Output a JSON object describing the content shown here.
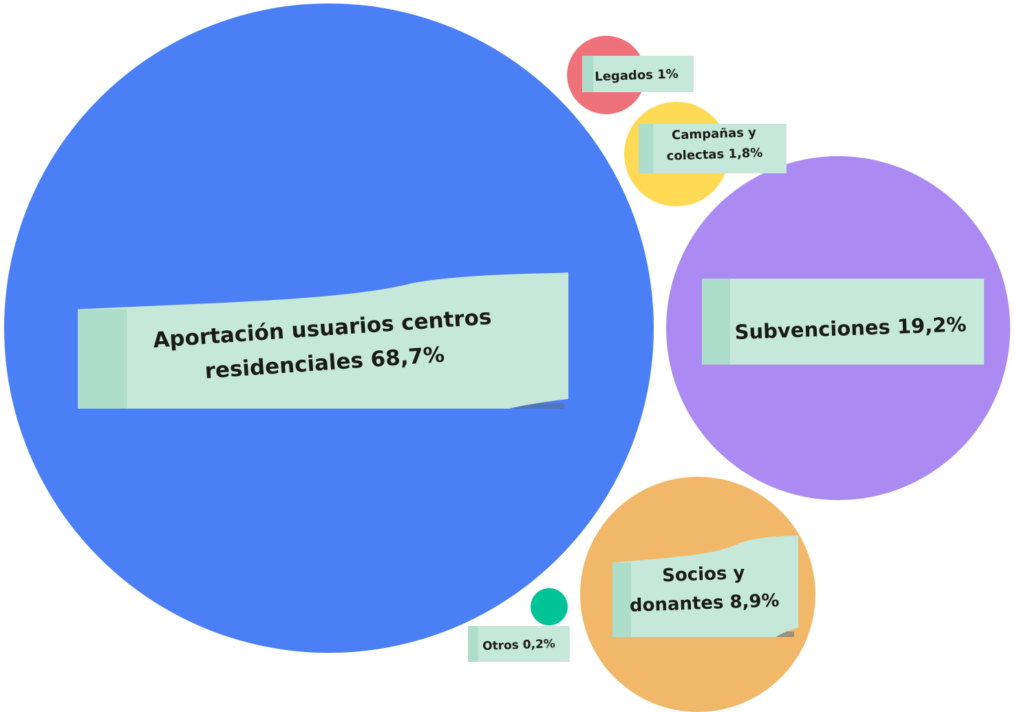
{
  "chart_data": {
    "type": "bubble",
    "series": [
      {
        "name": "Aportación usuarios centros residenciales",
        "value": 68.7,
        "label_lines": [
          "Aportación usuarios centros",
          "residenciales 68,7%"
        ],
        "color": "#4b7ff5"
      },
      {
        "name": "Subvenciones",
        "value": 19.2,
        "label_lines": [
          "Subvenciones 19,2%"
        ],
        "color": "#ab8bf2"
      },
      {
        "name": "Socios y donantes",
        "value": 8.9,
        "label_lines": [
          "Socios y",
          "donantes 8,9%"
        ],
        "color": "#f2b86a"
      },
      {
        "name": "Campañas y colectas",
        "value": 1.8,
        "label_lines": [
          "Campañas y",
          "colectas 1,8%"
        ],
        "color": "#ffda55"
      },
      {
        "name": "Legados",
        "value": 1,
        "label_lines": [
          "Legados 1%"
        ],
        "color": "#ef717a"
      },
      {
        "name": "Otros",
        "value": 0.2,
        "label_lines": [
          "Otros 0,2%"
        ],
        "color": "#00c397"
      }
    ],
    "label_style": {
      "note_color": "#c5e8da",
      "note_edge_color": "#a5d9c5",
      "note_shadow_color": "#5a6f8a"
    }
  }
}
